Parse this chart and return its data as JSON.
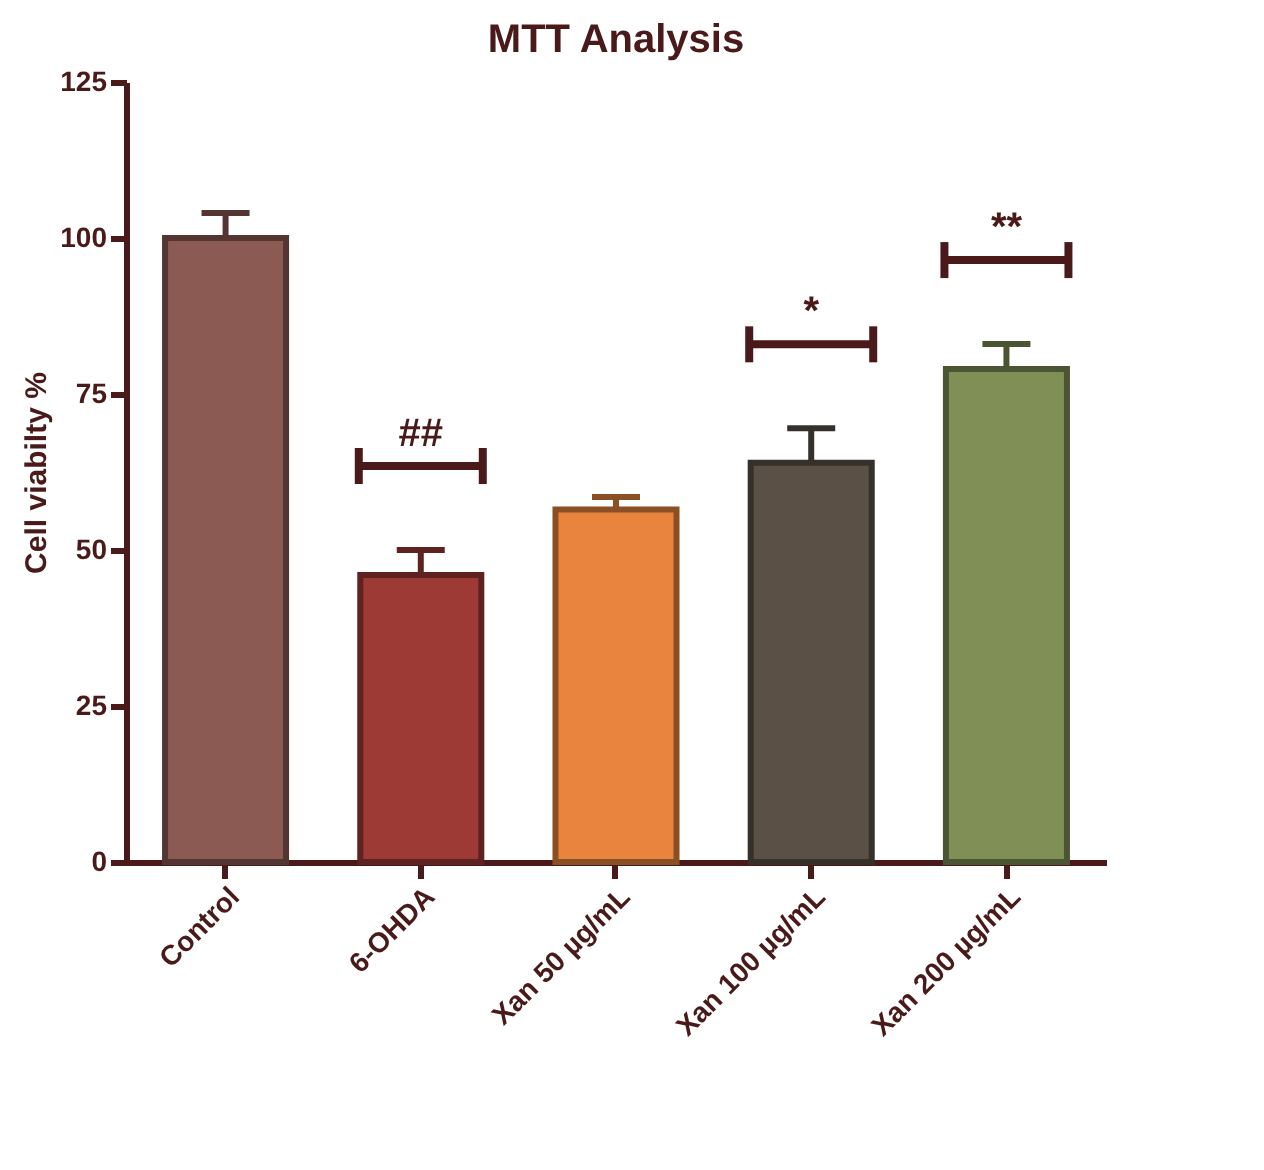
{
  "chart_data": {
    "type": "bar",
    "title": "MTT Analysis",
    "ylabel": "Cell viabilty %",
    "categories": [
      "Control",
      "6-OHDA",
      "Xan 50 µg/mL",
      "Xan 100 µg/mL",
      "Xan 200 µg/mL"
    ],
    "values": [
      100,
      46,
      56.5,
      64,
      79
    ],
    "colors": [
      "#8b5a52",
      "#9e3a36",
      "#e8843e",
      "#5a5046",
      "#7f8f56"
    ],
    "errors": [
      [
        100,
        104
      ],
      [
        46,
        50
      ],
      [
        56.5,
        58.5
      ],
      [
        64,
        69.5
      ],
      [
        79,
        83
      ]
    ],
    "annotations": [
      "##",
      "*",
      "**"
    ],
    "ylim": [
      0,
      125
    ],
    "yticks": [
      0,
      25,
      50,
      75,
      100,
      125
    ],
    "grid": false
  }
}
